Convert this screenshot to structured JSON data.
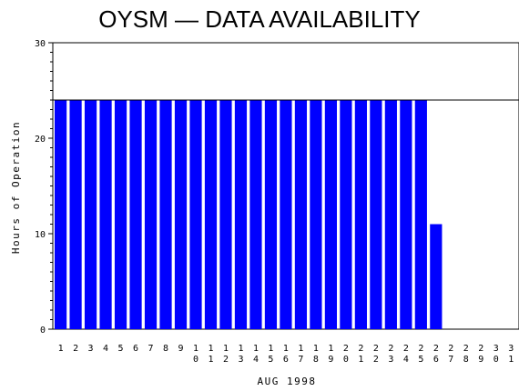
{
  "chart_data": {
    "type": "bar",
    "title": "OYSM — DATA AVAILABILITY",
    "xlabel": "AUG 1998",
    "ylabel": "Hours of Operation",
    "ylim": [
      0,
      30
    ],
    "yticks": [
      0,
      10,
      20,
      30
    ],
    "reference_line": 24,
    "grid": false,
    "legend": "none",
    "bar_color": "#0000ff",
    "categories": [
      "1",
      "2",
      "3",
      "4",
      "5",
      "6",
      "7",
      "8",
      "9",
      "10",
      "11",
      "12",
      "13",
      "14",
      "15",
      "16",
      "17",
      "18",
      "19",
      "20",
      "21",
      "22",
      "23",
      "24",
      "25",
      "26",
      "27",
      "28",
      "29",
      "30",
      "31"
    ],
    "values": [
      24,
      24,
      24,
      24,
      24,
      24,
      24,
      24,
      24,
      24,
      24,
      24,
      24,
      24,
      24,
      24,
      24,
      24,
      24,
      24,
      24,
      24,
      24,
      24,
      24,
      11,
      0,
      0,
      0,
      0,
      0
    ]
  }
}
